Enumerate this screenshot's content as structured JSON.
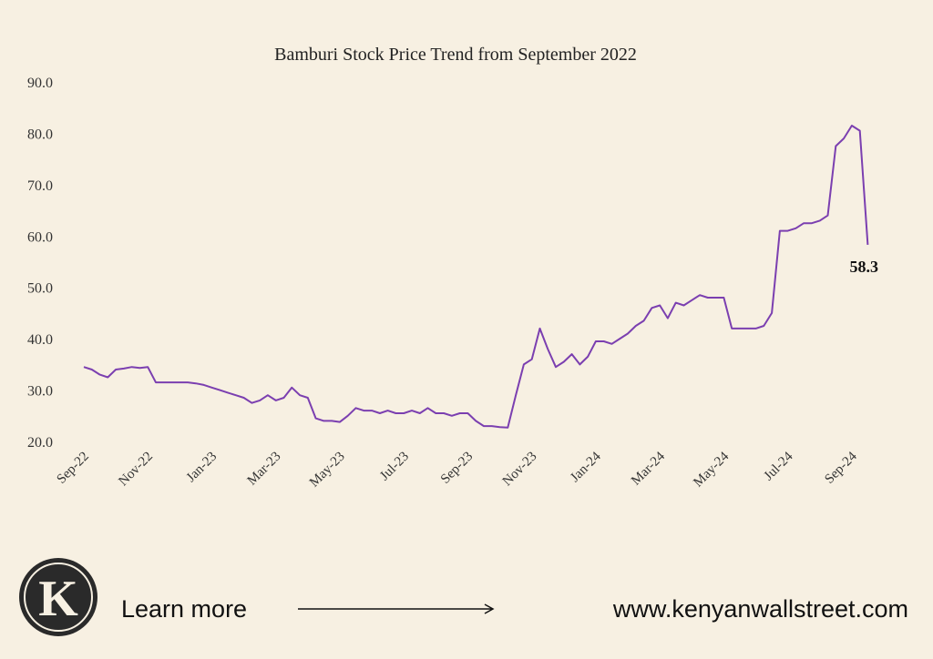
{
  "chart_data": {
    "type": "line",
    "title": "Bamburi Stock Price Trend from September 2022",
    "categories": [
      "Sep-22",
      null,
      null,
      null,
      null,
      null,
      null,
      null,
      "Nov-22",
      null,
      null,
      null,
      null,
      null,
      null,
      null,
      "Jan-23",
      null,
      null,
      null,
      null,
      null,
      null,
      null,
      "Mar-23",
      null,
      null,
      null,
      null,
      null,
      null,
      null,
      "May-23",
      null,
      null,
      null,
      null,
      null,
      null,
      null,
      "Jul-23",
      null,
      null,
      null,
      null,
      null,
      null,
      null,
      "Sep-23",
      null,
      null,
      null,
      null,
      null,
      null,
      null,
      "Nov-23",
      null,
      null,
      null,
      null,
      null,
      null,
      null,
      "Jan-24",
      null,
      null,
      null,
      null,
      null,
      null,
      null,
      "Mar-24",
      null,
      null,
      null,
      null,
      null,
      null,
      null,
      "May-24",
      null,
      null,
      null,
      null,
      null,
      null,
      null,
      "Jul-24",
      null,
      null,
      null,
      null,
      null,
      null,
      null,
      "Sep-24",
      null,
      null
    ],
    "values": [
      34.5,
      34,
      33,
      32.5,
      34,
      34.2,
      34.5,
      34.3,
      34.5,
      31.5,
      31.5,
      31.5,
      31.5,
      31.5,
      31.3,
      31,
      30.5,
      30,
      29.5,
      29,
      28.5,
      27.5,
      28,
      29,
      28,
      28.5,
      30.5,
      29,
      28.5,
      24.5,
      24,
      24,
      23.8,
      25,
      26.5,
      26,
      26,
      25.5,
      26,
      25.5,
      25.5,
      26,
      25.5,
      26.5,
      25.5,
      25.5,
      25,
      25.5,
      25.5,
      24,
      23,
      23,
      22.8,
      22.7,
      29,
      35,
      36,
      42,
      38,
      34.5,
      35.5,
      37,
      35,
      36.5,
      39.5,
      39.5,
      39,
      40,
      41,
      42.5,
      43.5,
      46,
      46.5,
      44,
      47,
      46.5,
      47.5,
      48.5,
      48,
      48,
      48,
      42,
      42,
      42,
      42,
      42.5,
      45,
      61,
      61,
      61.5,
      62.5,
      62.5,
      63,
      64,
      77.5,
      79,
      81.5,
      80.5,
      58.3
    ],
    "color": "#7b3fb0",
    "ylim": [
      20,
      90
    ],
    "yticks": [
      {
        "value": 20,
        "label": "20.0"
      },
      {
        "value": 30,
        "label": "30.0"
      },
      {
        "value": 40,
        "label": "40.0"
      },
      {
        "value": 50,
        "label": "50.0"
      },
      {
        "value": 60,
        "label": "60.0"
      },
      {
        "value": 70,
        "label": "70.0"
      },
      {
        "value": 80,
        "label": "80.0"
      },
      {
        "value": 90,
        "label": "90.0"
      }
    ],
    "grid": false
  },
  "footer": {
    "logo": "K",
    "learn_more": "Learn more",
    "website": "www.kenyanwallstreet.com"
  }
}
